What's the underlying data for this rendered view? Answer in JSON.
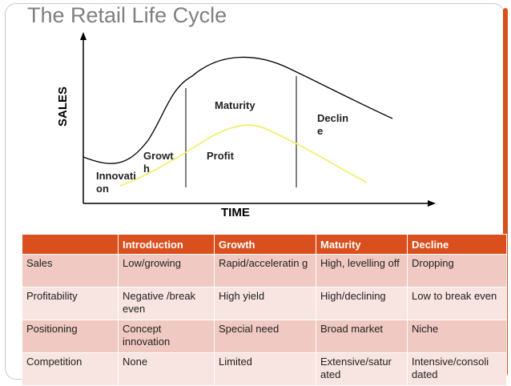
{
  "title": "The Retail Life Cycle",
  "diagram": {
    "y_axis_label": "SALES",
    "x_axis_label": "TIME",
    "stages": {
      "introduction": "Innovati on",
      "growth": "Growt h",
      "maturity": "Maturity",
      "decline": "Declin e"
    },
    "profit_label": "Profit",
    "sales_curve_color": "#000000",
    "profit_curve_color": "#f2ef73"
  },
  "table": {
    "headers": [
      "",
      "Introduction",
      "Growth",
      "Maturity",
      "Decline"
    ],
    "rows": [
      [
        "Sales",
        "Low/growing",
        "Rapid/acceleratin g",
        "High, levelling off",
        "Dropping"
      ],
      [
        "Profitability",
        "Negative /break even",
        "High yield",
        "High/declining",
        "Low to break even"
      ],
      [
        "Positioning",
        "Concept innovation",
        "Special need",
        "Broad market",
        "Niche"
      ],
      [
        "Competition",
        "None",
        "Limited",
        "Extensive/satur ated",
        "Intensive/consoli dated"
      ]
    ],
    "header_color": "#d9501e"
  }
}
